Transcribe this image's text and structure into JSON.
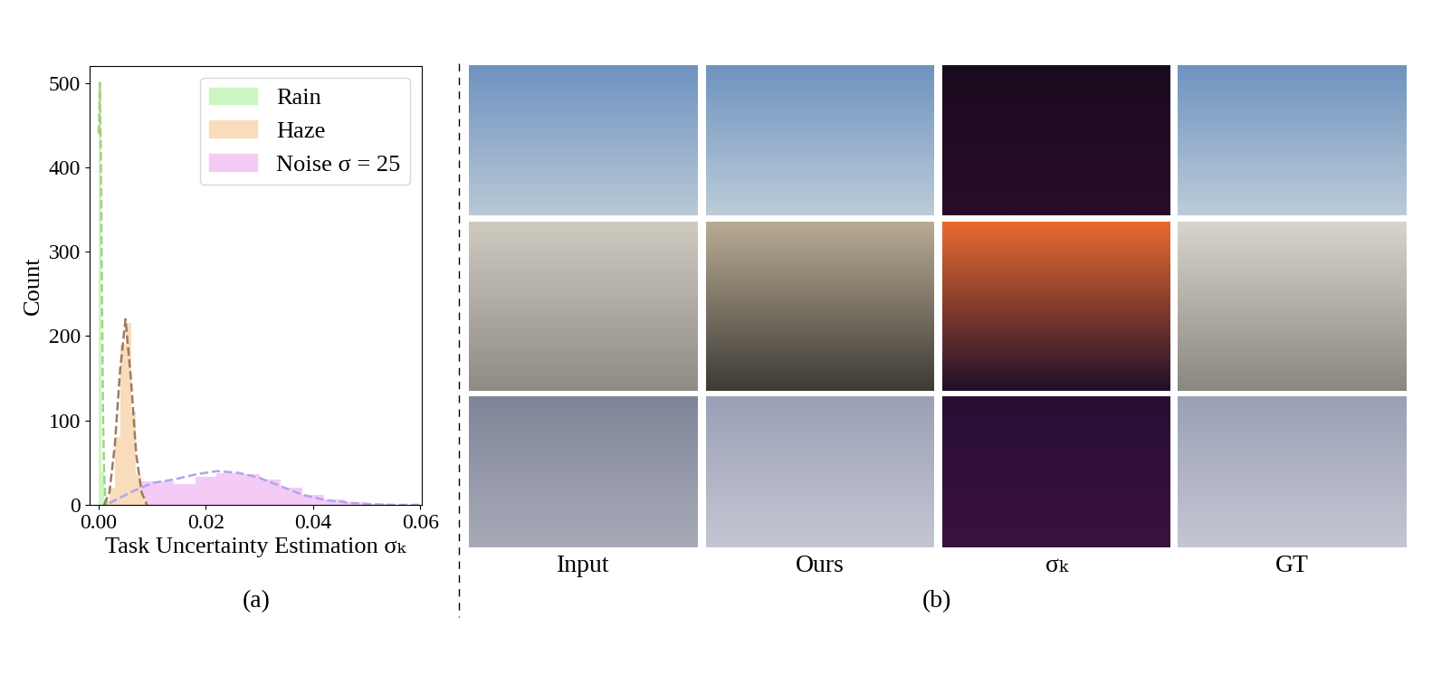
{
  "chart_data": {
    "type": "histogram",
    "xlabel": "Task Uncertainty Estimation σₖ",
    "ylabel": "Count",
    "xlim": [
      -0.0017,
      0.0603
    ],
    "ylim": [
      0,
      520
    ],
    "xticks": [
      {
        "value": 0,
        "label": "0.00"
      },
      {
        "value": 0.02,
        "label": "0.02"
      },
      {
        "value": 0.04,
        "label": "0.04"
      },
      {
        "value": 0.06,
        "label": "0.06"
      }
    ],
    "yticks": [
      0,
      100,
      200,
      300,
      400,
      500
    ],
    "legend": "upper right",
    "series": [
      {
        "name": "Rain",
        "color": "#ccf7c2",
        "bins": [
          0,
          0.0005,
          0.001,
          0.0015,
          0.002
        ],
        "values": [
          495,
          40,
          8,
          2
        ],
        "kde": {
          "x": [
            0,
            0.0002,
            0.0004,
            0.0006,
            0.0008,
            0.001,
            0.0012,
            0.0015
          ],
          "y": [
            440,
            500,
            420,
            250,
            110,
            40,
            10,
            0
          ],
          "color": "#a6cf86",
          "line_style": "dashed"
        }
      },
      {
        "name": "Haze",
        "color": "#f9dcbc",
        "bins": [
          0.001,
          0.002,
          0.003,
          0.004,
          0.005,
          0.006,
          0.007,
          0.008,
          0.009
        ],
        "values": [
          5,
          20,
          80,
          190,
          215,
          110,
          35,
          8
        ],
        "kde": {
          "x": [
            0.001,
            0.002,
            0.003,
            0.004,
            0.005,
            0.006,
            0.007,
            0.008,
            0.009
          ],
          "y": [
            0,
            15,
            70,
            160,
            220,
            150,
            60,
            15,
            0
          ],
          "color": "#9c7a60",
          "line_style": "dashed"
        }
      },
      {
        "name": "Noise σ = 25",
        "color": "#f4cbf4",
        "bins": [
          0.002,
          0.006,
          0.01,
          0.014,
          0.018,
          0.022,
          0.026,
          0.03,
          0.034,
          0.038,
          0.042,
          0.046,
          0.05,
          0.054
        ],
        "values": [
          10,
          28,
          28,
          25,
          33,
          38,
          36,
          30,
          20,
          12,
          6,
          3,
          1
        ],
        "kde": {
          "x": [
            0.002,
            0.006,
            0.01,
            0.014,
            0.018,
            0.022,
            0.026,
            0.03,
            0.034,
            0.038,
            0.042,
            0.046,
            0.05,
            0.055,
            0.06
          ],
          "y": [
            2,
            15,
            26,
            30,
            36,
            40,
            38,
            32,
            22,
            12,
            6,
            3,
            1,
            0,
            0
          ],
          "color": "#aaa8ee",
          "line_style": "dashed"
        }
      }
    ]
  },
  "panel_labels": [
    "(a)",
    "(b)"
  ],
  "image_grid": {
    "columns": [
      "Input",
      "Ours",
      "σₖ",
      "GT"
    ],
    "row_count": 3
  }
}
